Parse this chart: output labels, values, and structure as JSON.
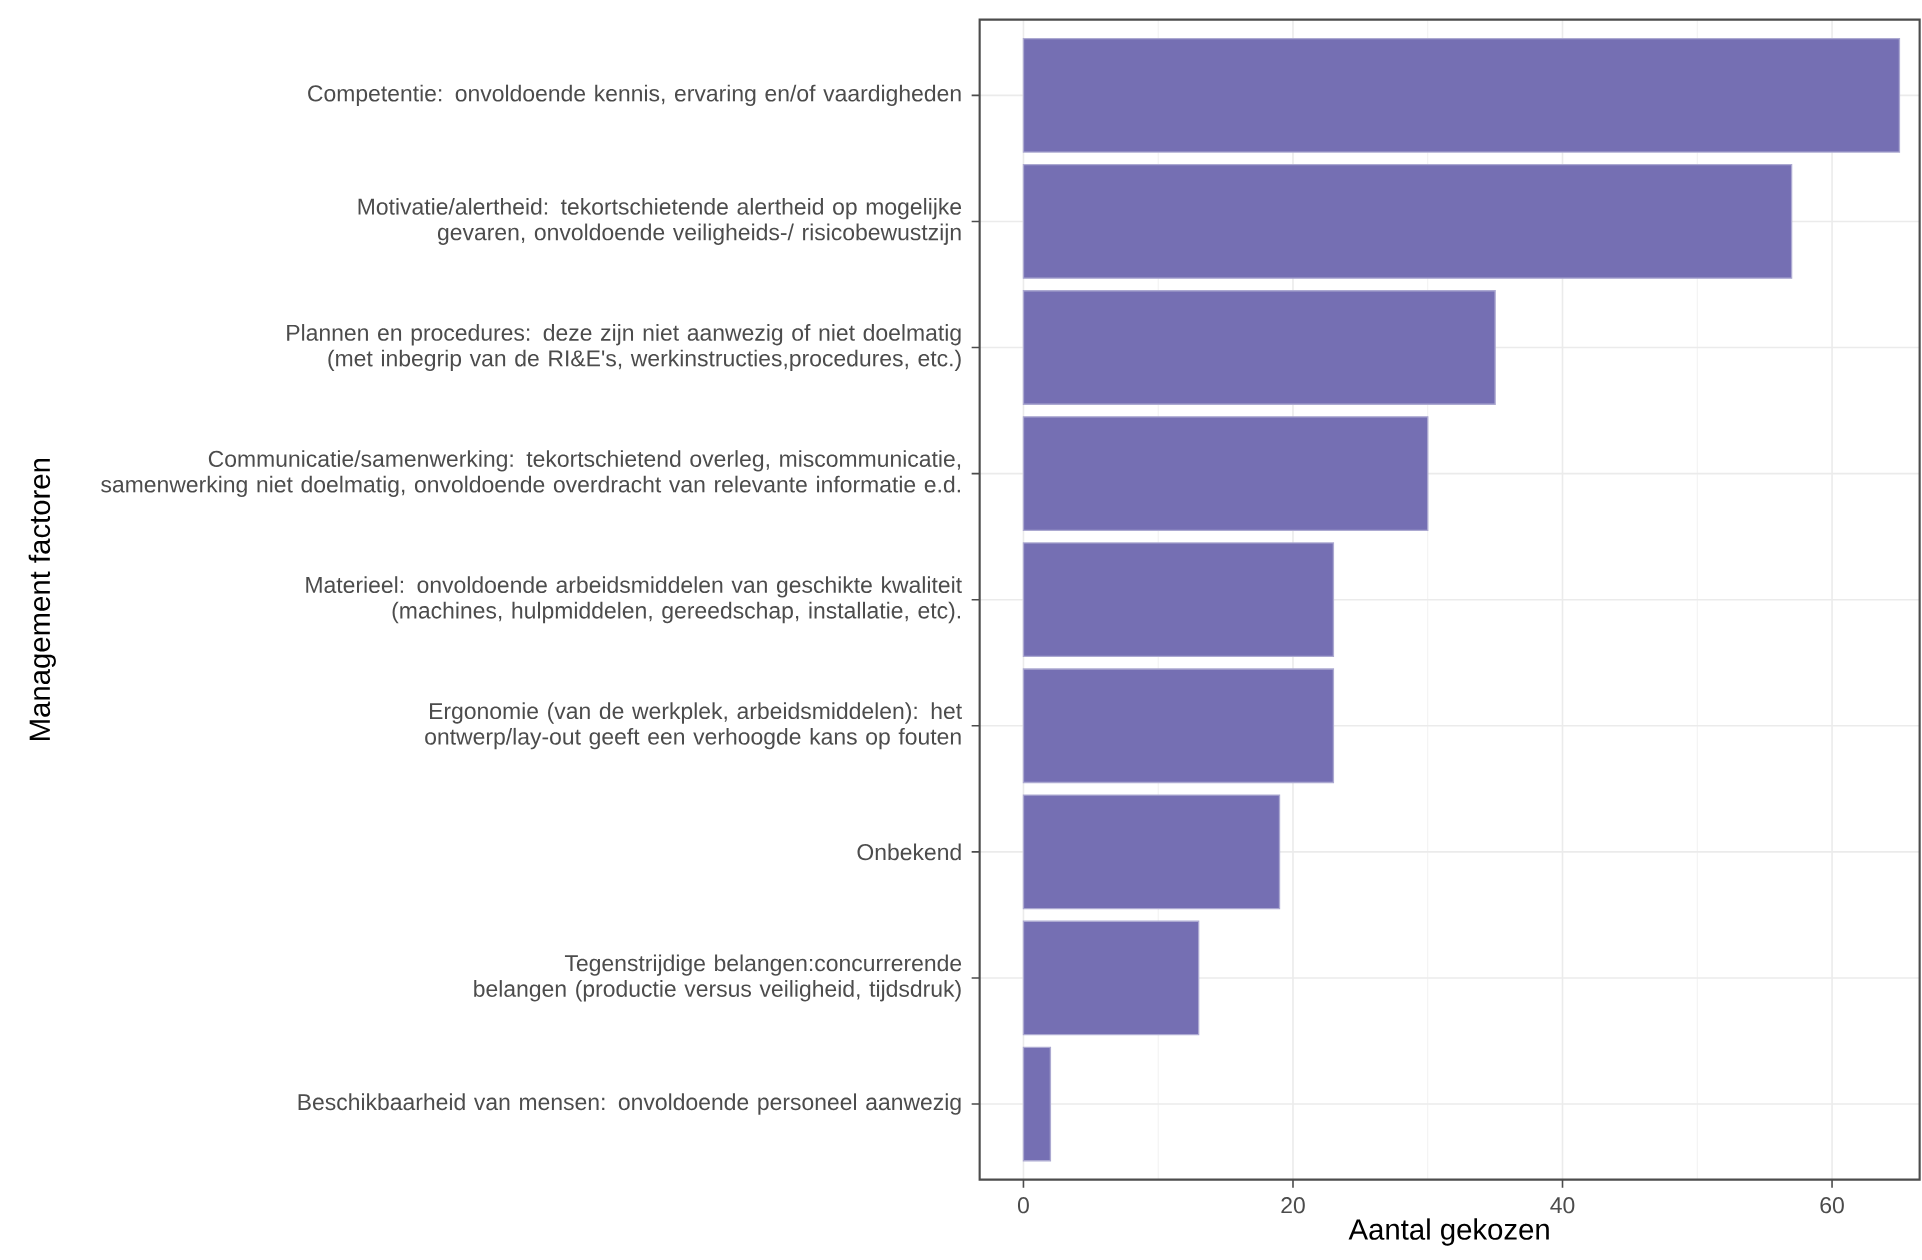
{
  "chart_data": {
    "type": "bar",
    "orientation": "horizontal",
    "xlabel": "Aantal gekozen",
    "ylabel": "Management factoren",
    "categories": [
      "Competentie: onvoldoende kennis, ervaring en/of vaardigheden",
      "Motivatie/alertheid: tekortschietende alertheid op mogelijke gevaren, onvoldoende veiligheids-/ risicobewustzijn",
      "Plannen en procedures: deze zijn niet aanwezig of niet doelmatig (met inbegrip van de RI&E's, werkinstructies,procedures, etc.)",
      "Communicatie/samenwerking: tekortschietend overleg, miscommunicatie, samenwerking niet doelmatig, onvoldoende overdracht van relevante informatie e.d.",
      "Materieel: onvoldoende arbeidsmiddelen van geschikte kwaliteit (machines, hulpmiddelen, gereedschap, installatie, etc).",
      "Ergonomie (van de werkplek, arbeidsmiddelen): het ontwerp/lay-out geeft een verhoogde kans op fouten",
      "Onbekend",
      "Tegenstrijdige belangen:concurrerende belangen (productie versus veiligheid, tijdsdruk)",
      "Beschikbaarheid van mensen: onvoldoende personeel aanwezig"
    ],
    "values": [
      65,
      57,
      35,
      30,
      23,
      23,
      19,
      13,
      2
    ],
    "color": "#756fb3",
    "xlim": [
      -3.25,
      66.5
    ],
    "xticks": [
      0,
      20,
      40,
      60
    ],
    "grid": true
  }
}
